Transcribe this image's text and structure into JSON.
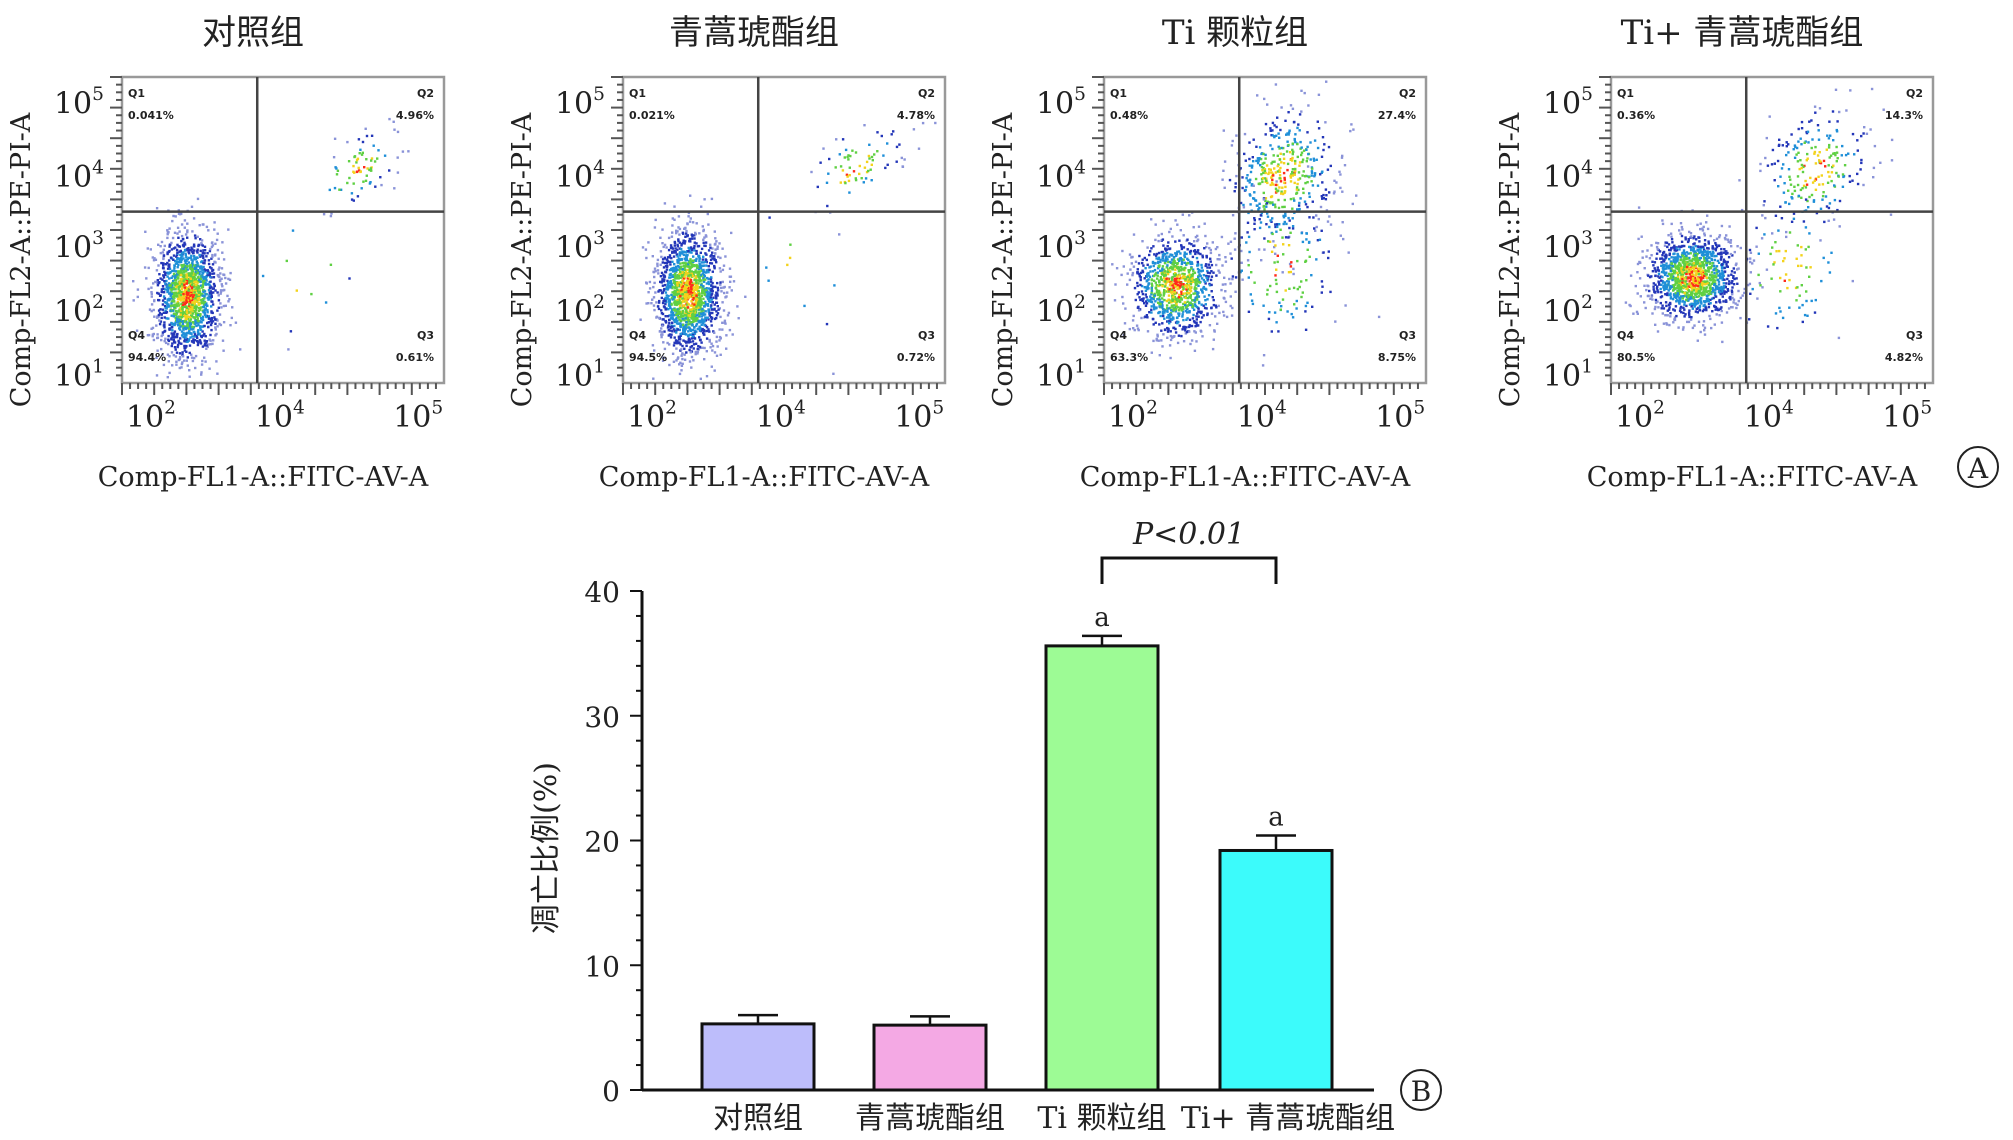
{
  "figure_labels": {
    "a": "A",
    "b": "B"
  },
  "chart_data": [
    {
      "type": "scatter",
      "subtype": "flow-cytometry-quadrant-panels",
      "x_label": "Comp-FL1-A::FITC-AV-A",
      "y_label": "Comp-FL2-A::PE-PI-A",
      "x_ticks": [
        {
          "base": "10",
          "exp": "2"
        },
        {
          "base": "10",
          "exp": "4"
        },
        {
          "base": "10",
          "exp": "5"
        }
      ],
      "y_ticks": [
        {
          "base": "10",
          "exp": "5"
        },
        {
          "base": "10",
          "exp": "4"
        },
        {
          "base": "10",
          "exp": "3"
        },
        {
          "base": "10",
          "exp": "2"
        },
        {
          "base": "10",
          "exp": "1"
        }
      ],
      "panels": [
        {
          "title": "对照组",
          "quadrants": {
            "Q1": "0.041%",
            "Q2": "4.96%",
            "Q3": "0.61%",
            "Q4": "94.4%"
          }
        },
        {
          "title": "青蒿琥酯组",
          "quadrants": {
            "Q1": "0.021%",
            "Q2": "4.78%",
            "Q3": "0.72%",
            "Q4": "94.5%"
          }
        },
        {
          "title": "Ti 颗粒组",
          "quadrants": {
            "Q1": "0.48%",
            "Q2": "27.4%",
            "Q3": "8.75%",
            "Q4": "63.3%"
          }
        },
        {
          "title": "Ti+ 青蒿琥酯组",
          "quadrants": {
            "Q1": "0.36%",
            "Q2": "14.3%",
            "Q3": "4.82%",
            "Q4": "80.5%"
          }
        }
      ]
    },
    {
      "type": "bar",
      "categories": [
        "对照组",
        "青蒿琥酯组",
        "Ti 颗粒组",
        "Ti+ 青蒿琥酯组"
      ],
      "values": [
        5.3,
        5.2,
        35.6,
        19.2
      ],
      "errors": [
        0.7,
        0.7,
        0.8,
        1.2
      ],
      "colors": [
        "#bdbdfb",
        "#f4a9e4",
        "#9dfb95",
        "#3cfbfb"
      ],
      "annotations": [
        "",
        "",
        "a",
        "a"
      ],
      "significance": {
        "text": "P<0.01",
        "between": [
          2,
          3
        ]
      },
      "ylabel": "凋亡比例(%)",
      "ylim": [
        0,
        40
      ],
      "yticks": [
        0,
        10,
        20,
        30,
        40
      ]
    }
  ]
}
